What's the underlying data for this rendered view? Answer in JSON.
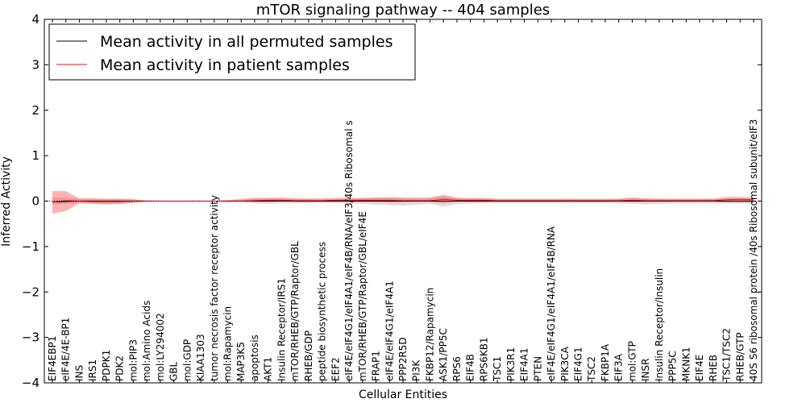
{
  "chart_data": {
    "type": "line",
    "title": "mTOR signaling pathway -- 404 samples",
    "xlabel": "Cellular Entities",
    "ylabel": "Inferred Activity",
    "ylim": [
      -4,
      4
    ],
    "yticks": [
      -4,
      -3,
      -2,
      -1,
      0,
      1,
      2,
      3,
      4
    ],
    "ytick_labels": [
      "−4",
      "−3",
      "−2",
      "−1",
      "0",
      "1",
      "2",
      "3",
      "4"
    ],
    "legend_position": "top-left",
    "categories": [
      "EIF4EBP1",
      "eIF4E/4E-BP1",
      "INS",
      "IRS1",
      "PDPK1",
      "PDK2",
      "mol:PIP3",
      "mol:Amino Acids",
      "mol:LY294002",
      "GBL",
      "mol:GDP",
      "KIAA1303",
      "tumor necrosis factor receptor activity",
      "mol:Rapamycin",
      "MAP3K5",
      "apoptosis",
      "AKT1",
      "Insulin Receptor/IRS1",
      "mTOR/RHEB/GTP/Raptor/GBL",
      "RHEB/GDP",
      "peptide biosynthetic process",
      "EEF2",
      "eIF4E/eIF4G1/eIF4A1/eIF4B/RNA/eIF3/40s Ribosomal s",
      "mTOR/RHEB/GTP/Raptor/GBL/eIF4E",
      "FRAP1",
      "eIF4E/eIF4G1/eIF4A1",
      "PPP2R5D",
      "PI3K",
      "FKBP12/Rapamycin",
      "ASK1/PP5C",
      "RPS6",
      "EIF4B",
      "RPS6KB1",
      "TSC1",
      "PIK3R1",
      "EIF4A1",
      "PTEN",
      "eIF4E/eIF4G1/eIF4A1/eIF4B/RNA",
      "PIK3CA",
      "EIF4G1",
      "TSC2",
      "FKBP1A",
      "EIF3A",
      "mol:GTP",
      "INSR",
      "Insulin Receptor/Insulin",
      "PPP5C",
      "MKNK1",
      "EIF4E",
      "RHEB",
      "TSC1/TSC2",
      "RHEB/GTP",
      "40S S6 ribosomal protein /40s Ribosomal subunit/eIF3"
    ],
    "series": [
      {
        "name": "Mean activity in all permuted samples",
        "color": "#000000",
        "values": [
          -0.02,
          -0.01,
          0.0,
          0.0,
          0.0,
          0.0,
          0.0,
          0.0,
          0.0,
          0.0,
          0.0,
          0.0,
          0.0,
          0.0,
          0.0,
          0.0,
          0.0,
          0.0,
          0.0,
          0.0,
          0.0,
          0.0,
          0.0,
          0.0,
          0.0,
          0.0,
          0.0,
          0.0,
          0.0,
          0.0,
          0.0,
          0.0,
          0.0,
          0.0,
          0.0,
          0.0,
          0.0,
          0.0,
          0.0,
          0.0,
          0.0,
          0.0,
          0.0,
          0.0,
          0.0,
          0.0,
          0.0,
          0.0,
          0.0,
          0.0,
          0.0,
          0.0,
          0.0
        ],
        "band_lower": [
          -0.08,
          -0.06,
          -0.04,
          -0.05,
          -0.06,
          -0.06,
          -0.04,
          -0.02,
          -0.01,
          -0.01,
          -0.01,
          -0.01,
          -0.01,
          -0.02,
          -0.03,
          -0.05,
          -0.06,
          -0.05,
          -0.05,
          -0.04,
          -0.04,
          -0.04,
          -0.05,
          -0.06,
          -0.08,
          -0.09,
          -0.1,
          -0.08,
          -0.06,
          -0.12,
          -0.07,
          -0.05,
          -0.05,
          -0.04,
          -0.04,
          -0.04,
          -0.04,
          -0.04,
          -0.04,
          -0.04,
          -0.04,
          -0.04,
          -0.05,
          -0.06,
          -0.07,
          -0.06,
          -0.05,
          -0.05,
          -0.05,
          -0.05,
          -0.05,
          -0.05,
          -0.05
        ],
        "band_upper": [
          0.08,
          0.07,
          0.05,
          0.05,
          0.05,
          0.05,
          0.04,
          0.02,
          0.01,
          0.01,
          0.01,
          0.01,
          0.01,
          0.02,
          0.03,
          0.05,
          0.06,
          0.05,
          0.05,
          0.04,
          0.04,
          0.04,
          0.05,
          0.06,
          0.07,
          0.08,
          0.08,
          0.07,
          0.06,
          0.1,
          0.06,
          0.05,
          0.05,
          0.04,
          0.04,
          0.04,
          0.04,
          0.04,
          0.04,
          0.04,
          0.04,
          0.04,
          0.05,
          0.06,
          0.06,
          0.05,
          0.05,
          0.05,
          0.05,
          0.05,
          0.05,
          0.05,
          0.05
        ]
      },
      {
        "name": "Mean activity in patient samples",
        "color": "#ff0000",
        "values": [
          -0.02,
          0.01,
          0.0,
          -0.01,
          -0.01,
          -0.01,
          0.0,
          0.0,
          0.0,
          0.0,
          0.0,
          0.0,
          0.0,
          0.0,
          0.0,
          0.01,
          0.02,
          0.02,
          0.01,
          0.01,
          0.01,
          0.02,
          0.02,
          0.02,
          0.02,
          0.02,
          0.01,
          0.01,
          0.01,
          0.04,
          0.02,
          0.02,
          0.02,
          0.01,
          0.01,
          0.01,
          0.01,
          0.01,
          0.01,
          0.01,
          0.01,
          0.01,
          0.01,
          0.02,
          0.01,
          0.01,
          0.01,
          0.01,
          0.01,
          0.01,
          0.03,
          0.04,
          0.03
        ],
        "band_lower": [
          -0.28,
          -0.22,
          -0.05,
          -0.06,
          -0.07,
          -0.06,
          -0.04,
          -0.01,
          -0.01,
          -0.01,
          -0.01,
          -0.01,
          -0.01,
          -0.02,
          -0.01,
          -0.02,
          -0.02,
          -0.01,
          -0.02,
          -0.03,
          -0.02,
          -0.02,
          -0.02,
          -0.02,
          -0.02,
          -0.03,
          -0.03,
          -0.02,
          -0.02,
          -0.05,
          -0.02,
          -0.02,
          -0.02,
          -0.02,
          -0.02,
          -0.02,
          -0.02,
          -0.02,
          -0.02,
          -0.02,
          -0.02,
          -0.02,
          -0.02,
          -0.02,
          -0.02,
          -0.02,
          -0.02,
          -0.02,
          -0.02,
          -0.02,
          -0.03,
          -0.03,
          -0.03
        ],
        "band_upper": [
          0.22,
          0.22,
          0.06,
          0.06,
          0.05,
          0.05,
          0.04,
          0.01,
          0.01,
          0.01,
          0.01,
          0.01,
          0.01,
          0.02,
          0.05,
          0.07,
          0.07,
          0.08,
          0.06,
          0.06,
          0.06,
          0.07,
          0.07,
          0.07,
          0.08,
          0.08,
          0.07,
          0.07,
          0.08,
          0.14,
          0.07,
          0.07,
          0.07,
          0.05,
          0.05,
          0.05,
          0.05,
          0.05,
          0.05,
          0.05,
          0.05,
          0.05,
          0.05,
          0.08,
          0.06,
          0.05,
          0.05,
          0.05,
          0.05,
          0.05,
          0.09,
          0.09,
          0.08
        ]
      }
    ]
  }
}
